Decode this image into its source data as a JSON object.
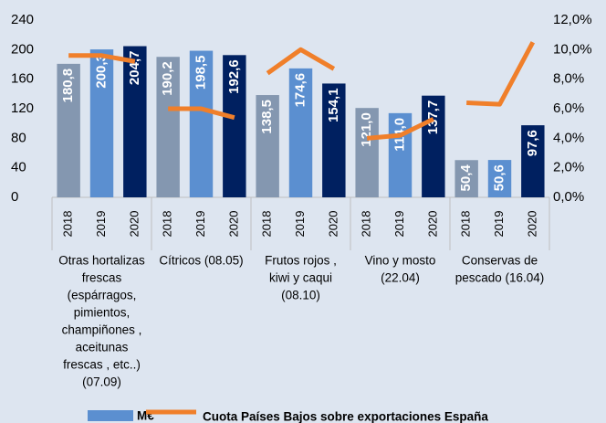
{
  "chart_data": {
    "type": "bar",
    "categories": [
      "2018",
      "2019",
      "2020",
      "2018",
      "2019",
      "2020",
      "2018",
      "2019",
      "2020",
      "2018",
      "2019",
      "2020",
      "2018",
      "2019",
      "2020"
    ],
    "group_labels": [
      [
        "Otras hortalizas",
        "frescas",
        "(espárragos,",
        "pimientos,",
        "champiñones ,",
        "aceitunas",
        "frescas , etc..)",
        "(07.09)"
      ],
      [
        "Cítricos (08.05)"
      ],
      [
        "Frutos rojos ,",
        "kiwi  y caqui",
        "(08.10)"
      ],
      [
        "Vino y mosto",
        "(22.04)"
      ],
      [
        "Conservas de",
        "pescado (16.04)"
      ]
    ],
    "series": [
      {
        "name": "M€",
        "color": "#5b8fd0",
        "colors": [
          "#8497b0",
          "#5b8fd0",
          "#002060"
        ],
        "values": [
          180.8,
          200.3,
          204.7,
          190.2,
          198.5,
          192.6,
          138.5,
          174.6,
          154.1,
          121.0,
          114.0,
          137.7,
          50.4,
          50.6,
          97.6
        ],
        "value_labels": [
          "180,8",
          "200,3",
          "204,7",
          "190,2",
          "198,5",
          "192,6",
          "138,5",
          "174,6",
          "154,1",
          "121,0",
          "114,0",
          "137,7",
          "50,4",
          "50,6",
          "97,6"
        ]
      },
      {
        "name": "Cuota Países Bajos sobre exportaciones España",
        "type": "line",
        "axis": "y2",
        "color": "#f07f2a",
        "values": [
          9.6,
          9.6,
          9.2,
          6.0,
          6.0,
          5.4,
          8.4,
          10.0,
          8.7,
          4.0,
          4.2,
          5.3,
          6.4,
          6.3,
          10.5
        ]
      }
    ],
    "ylim": [
      0,
      240
    ],
    "yticks": [
      0,
      40,
      80,
      120,
      160,
      200,
      240
    ],
    "y2lim": [
      0,
      12
    ],
    "y2ticks": [
      {
        "value": 0,
        "label": "0,0%"
      },
      {
        "value": 2,
        "label": "2,0%"
      },
      {
        "value": 4,
        "label": "4,0%"
      },
      {
        "value": 6,
        "label": "6,0%"
      },
      {
        "value": 8,
        "label": "8,0%"
      },
      {
        "value": 10,
        "label": "10,0%"
      },
      {
        "value": 12,
        "label": "12,0%"
      }
    ]
  }
}
